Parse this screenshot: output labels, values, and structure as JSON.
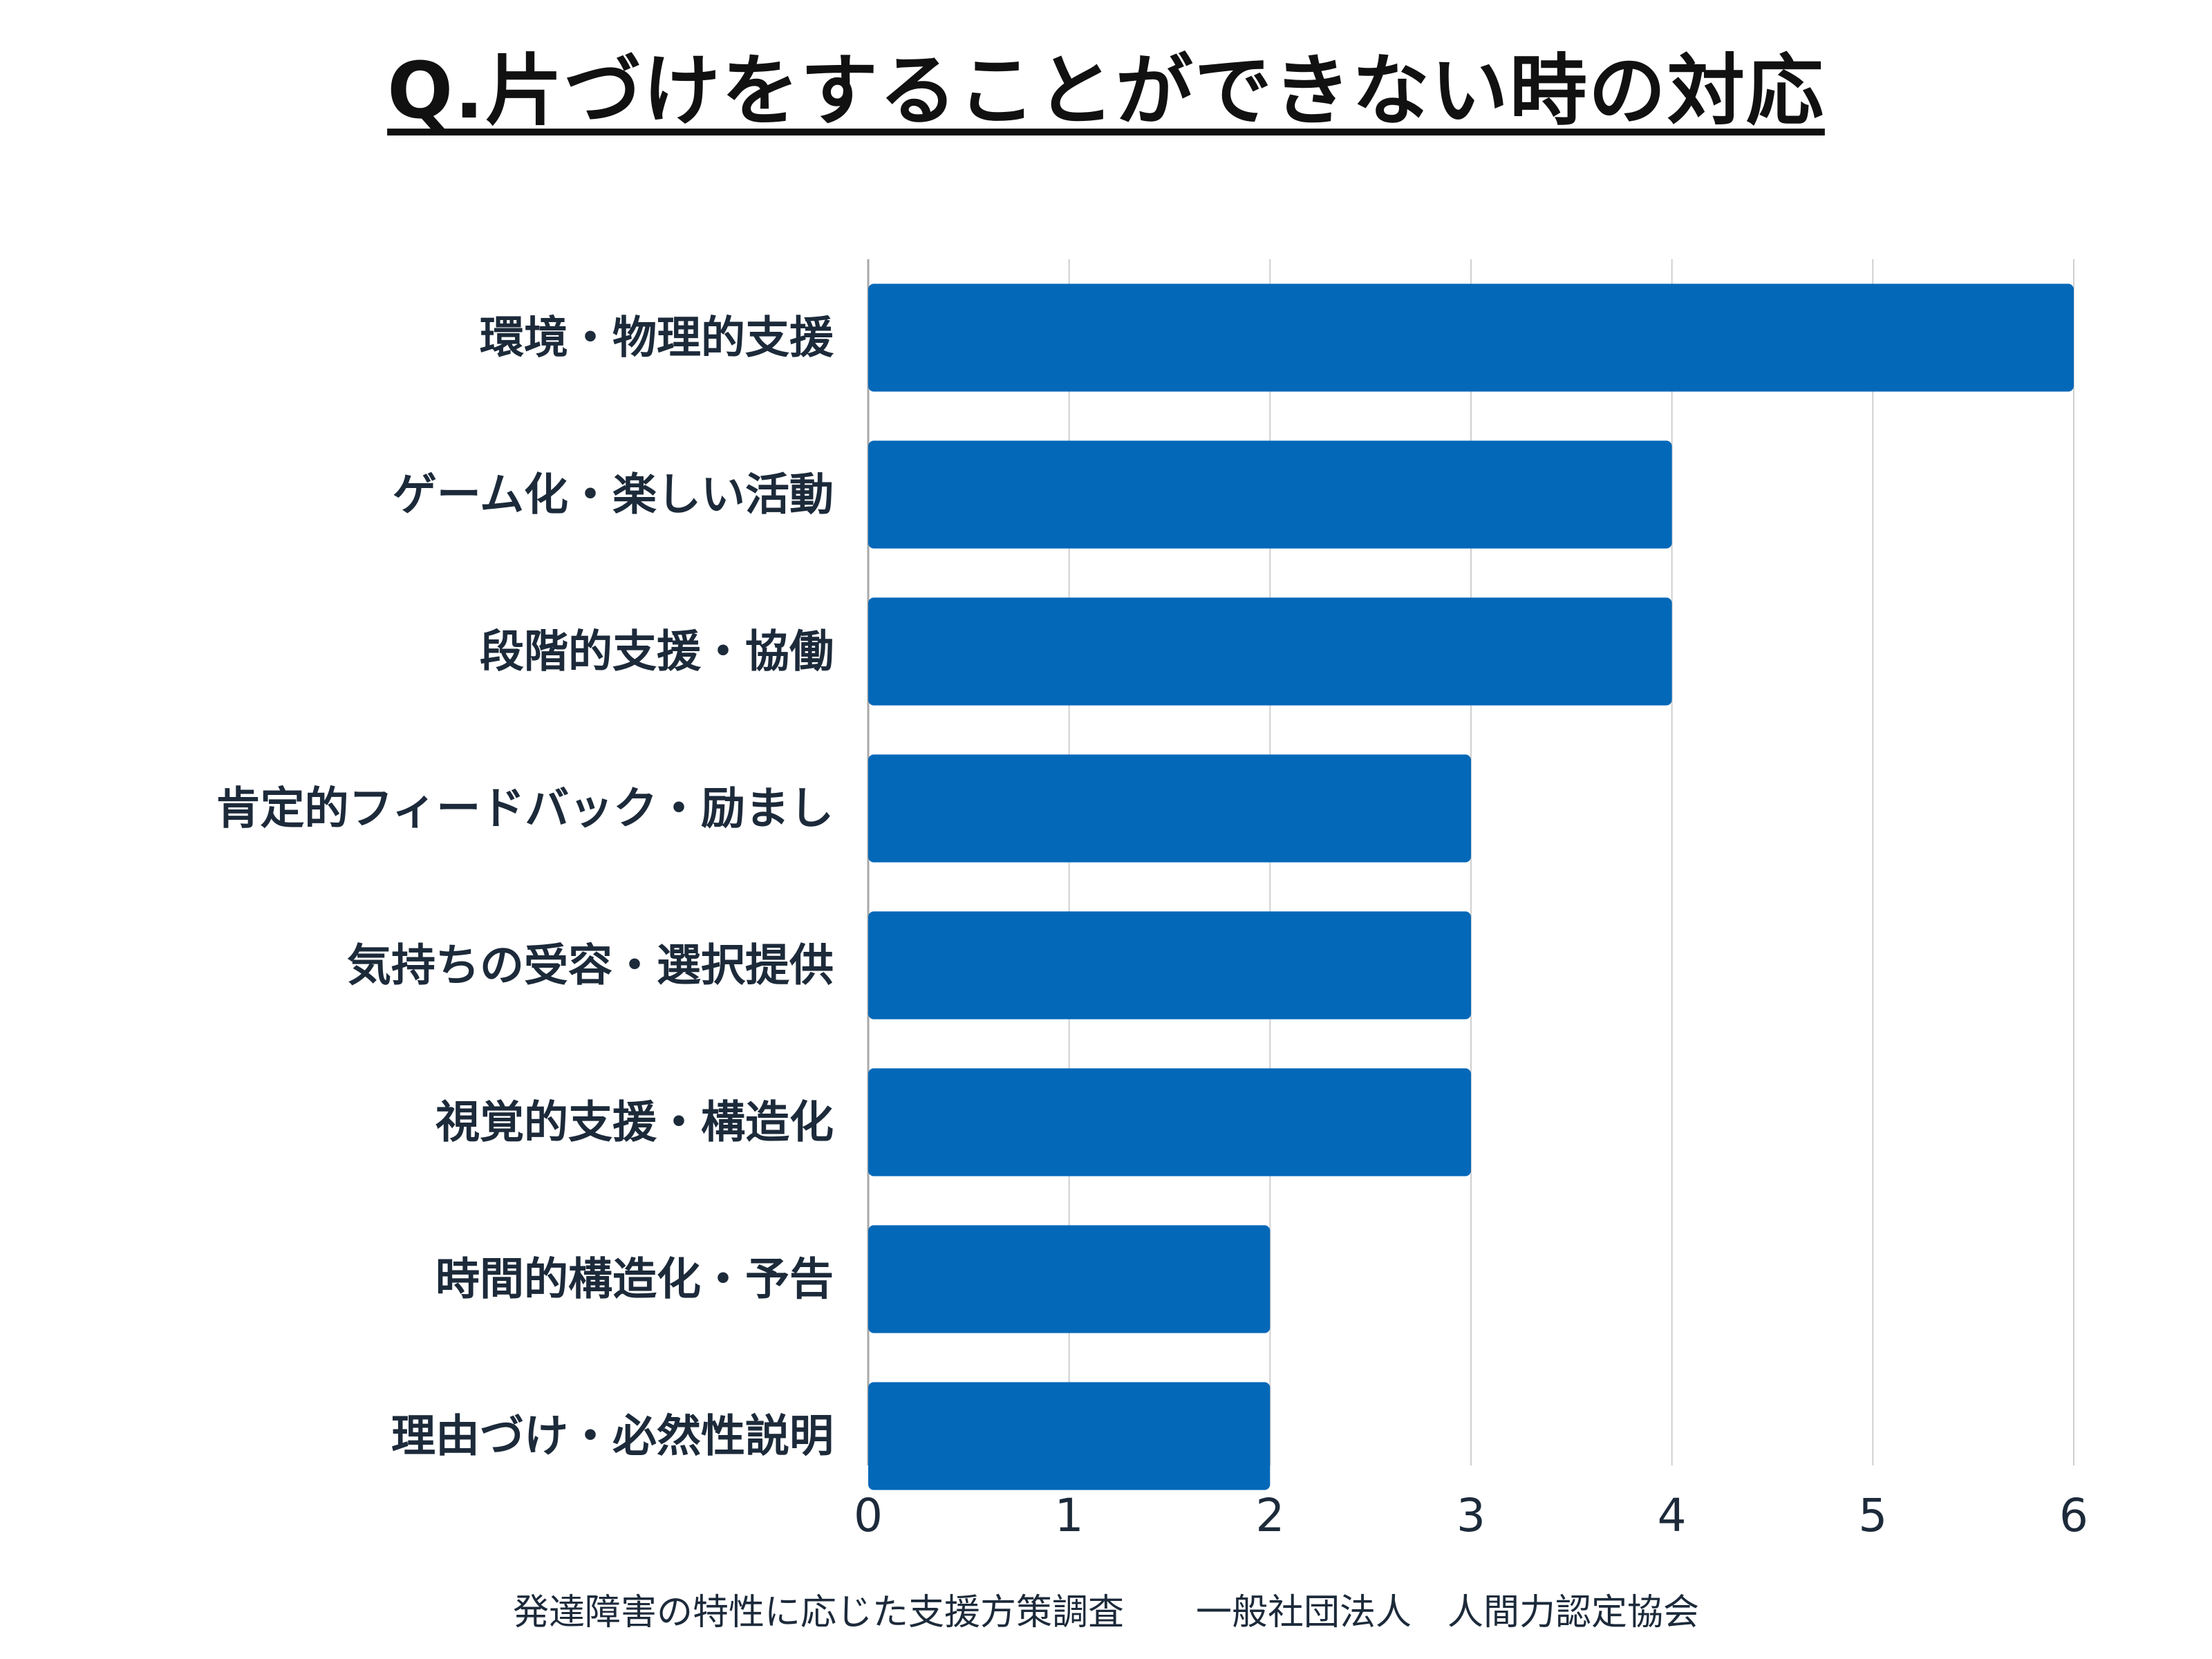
{
  "chart_data": {
    "type": "bar",
    "orientation": "horizontal",
    "title": "Q.片づけをすることができない時の対応",
    "categories": [
      "環境・物理的支援",
      "ゲーム化・楽しい活動",
      "段階的支援・協働",
      "肯定的フィードバック・励まし",
      "気持ちの受容・選択提供",
      "視覚的支援・構造化",
      "時間的構造化・予告",
      "理由づけ・必然性説明"
    ],
    "values": [
      6,
      4,
      4,
      3,
      3,
      3,
      2,
      2
    ],
    "xlim": [
      0,
      6
    ],
    "xticks": [
      "0",
      "1",
      "2",
      "3",
      "4",
      "5",
      "6"
    ],
    "bar_color": "#0468b8",
    "grid": true,
    "grid_axis": "x",
    "legend": "none",
    "xlabel": "",
    "ylabel": "",
    "source": "発達障害の特性に応じた支援方策調査　　一般社団法人　人間力認定協会"
  }
}
